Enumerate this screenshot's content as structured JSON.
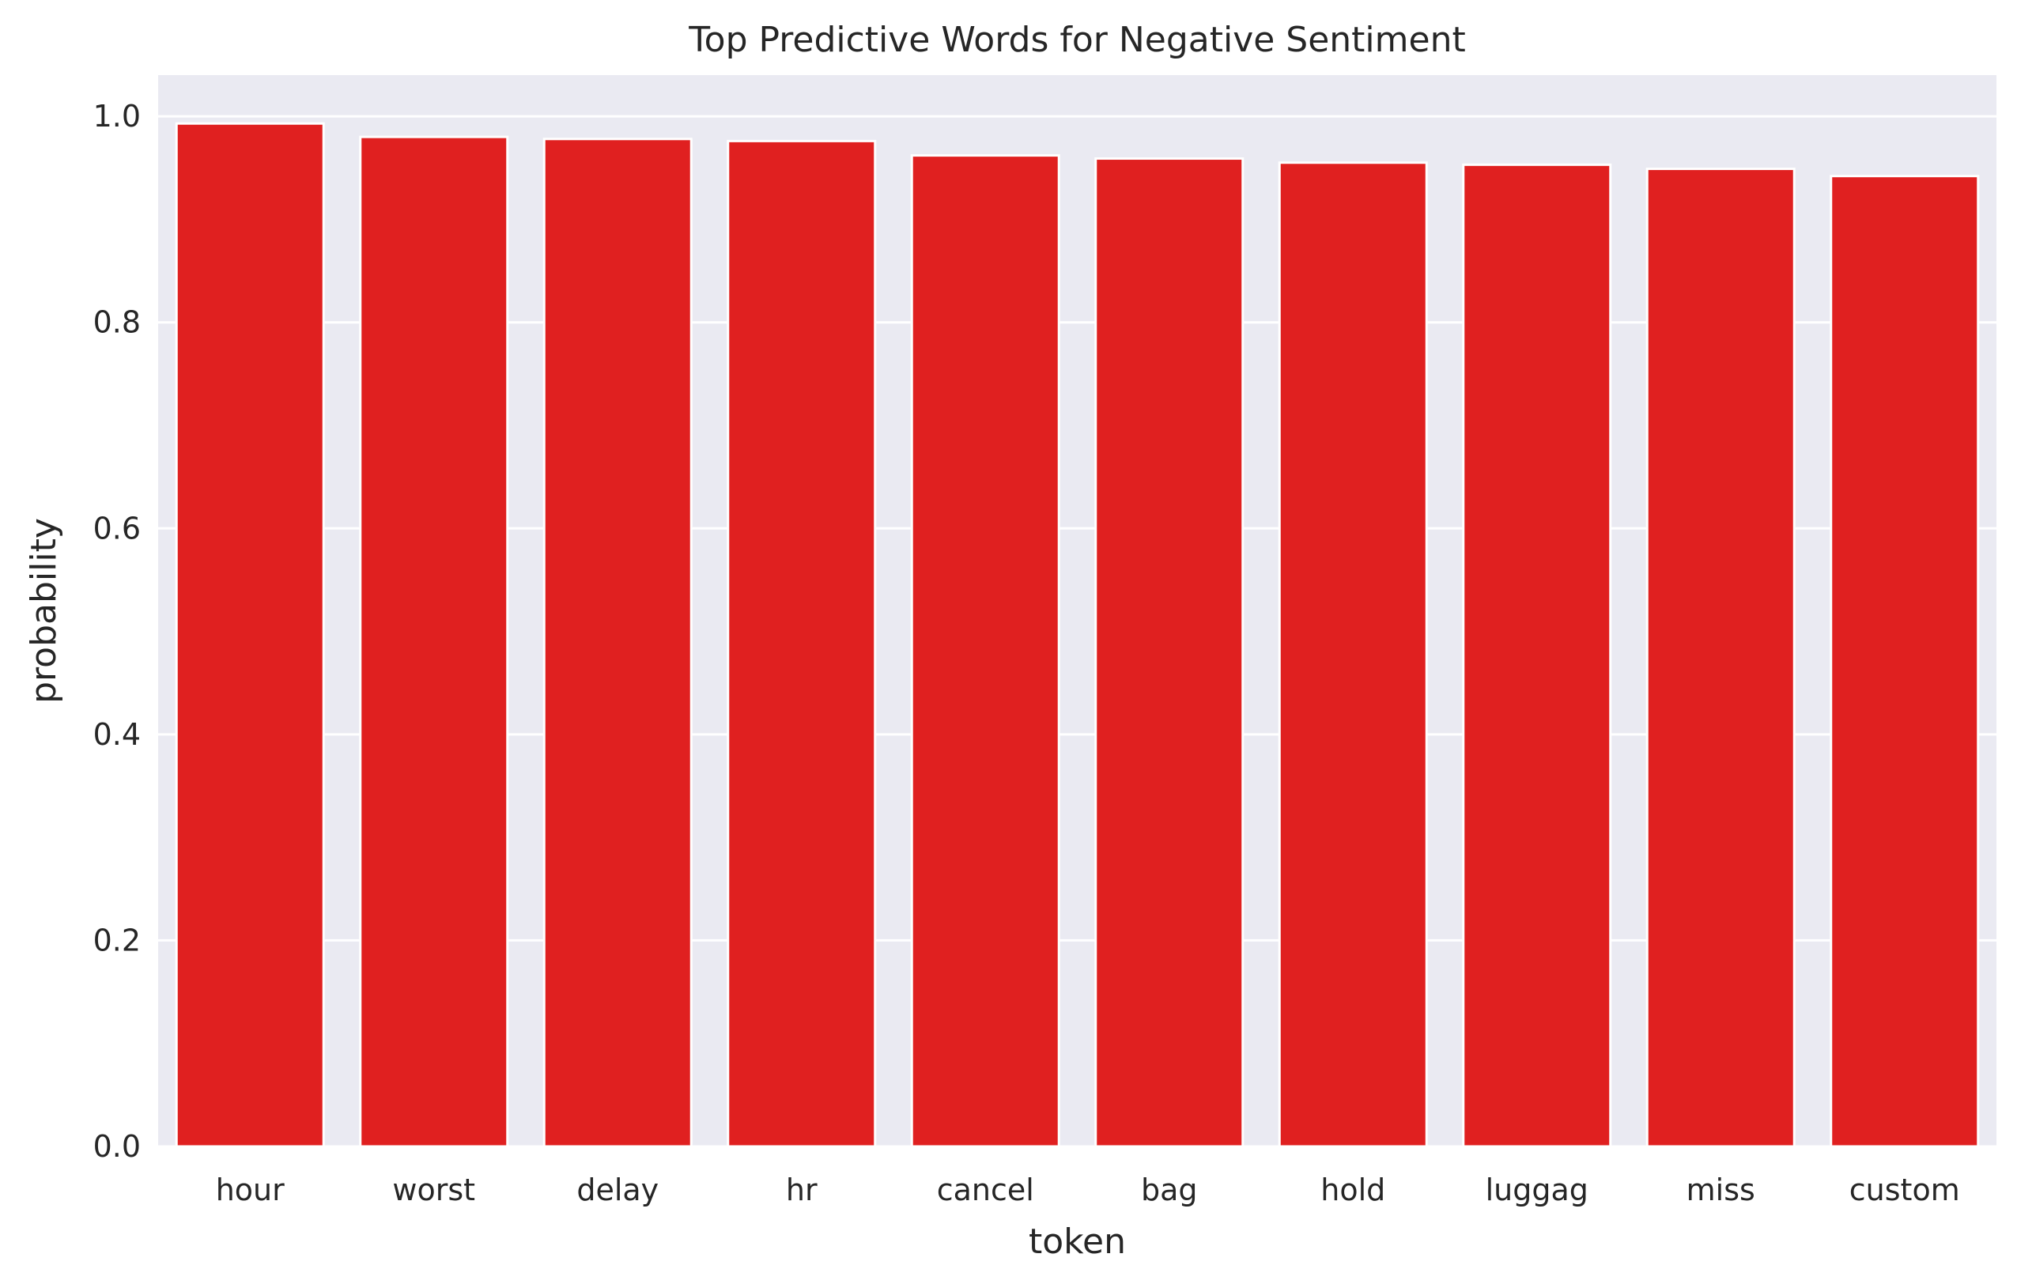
{
  "chart_data": {
    "type": "bar",
    "title": "Top Predictive Words for Negative Sentiment",
    "xlabel": "token",
    "ylabel": "probability",
    "categories": [
      "hour",
      "worst",
      "delay",
      "hr",
      "cancel",
      "bag",
      "hold",
      "luggag",
      "miss",
      "custom"
    ],
    "values": [
      0.993,
      0.98,
      0.978,
      0.976,
      0.962,
      0.959,
      0.955,
      0.953,
      0.949,
      0.942
    ],
    "ylim": [
      0,
      1.04
    ],
    "yticks": [
      "0.0",
      "0.2",
      "0.4",
      "0.6",
      "0.8",
      "1.0"
    ],
    "grid": true,
    "colors": {
      "bar": "#e02020",
      "background": "#eaeaf2",
      "grid": "#ffffff"
    }
  }
}
